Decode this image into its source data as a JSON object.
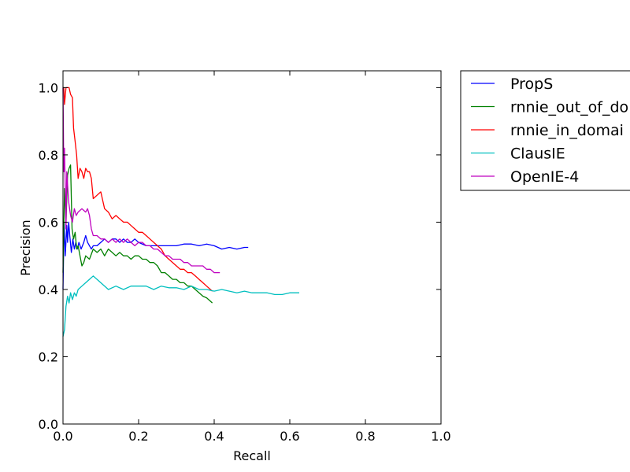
{
  "chart_data": {
    "type": "line",
    "xlabel": "Recall",
    "ylabel": "Precision",
    "xlim": [
      0.0,
      1.0
    ],
    "ylim": [
      0.0,
      1.05
    ],
    "xticks": [
      "0.0",
      "0.2",
      "0.4",
      "0.6",
      "0.8",
      "1.0"
    ],
    "yticks": [
      "0.0",
      "0.2",
      "0.4",
      "0.6",
      "0.8",
      "1.0"
    ],
    "grid": false,
    "legend_position": "outside-top-right",
    "series": [
      {
        "name": "PropS",
        "color": "#0000ff",
        "x": [
          0.0,
          0.003,
          0.006,
          0.01,
          0.012,
          0.015,
          0.018,
          0.022,
          0.026,
          0.03,
          0.034,
          0.038,
          0.042,
          0.048,
          0.055,
          0.06,
          0.065,
          0.07,
          0.075,
          0.08,
          0.09,
          0.1,
          0.11,
          0.12,
          0.13,
          0.14,
          0.15,
          0.16,
          0.17,
          0.18,
          0.19,
          0.2,
          0.22,
          0.24,
          0.26,
          0.28,
          0.3,
          0.32,
          0.34,
          0.36,
          0.38,
          0.4,
          0.42,
          0.44,
          0.46,
          0.48,
          0.49
        ],
        "y": [
          0.4,
          0.6,
          0.5,
          0.59,
          0.54,
          0.6,
          0.56,
          0.51,
          0.55,
          0.52,
          0.54,
          0.52,
          0.54,
          0.52,
          0.54,
          0.56,
          0.54,
          0.53,
          0.52,
          0.53,
          0.53,
          0.54,
          0.55,
          0.54,
          0.55,
          0.55,
          0.54,
          0.55,
          0.54,
          0.54,
          0.55,
          0.54,
          0.53,
          0.53,
          0.53,
          0.53,
          0.53,
          0.535,
          0.535,
          0.53,
          0.535,
          0.53,
          0.52,
          0.525,
          0.52,
          0.525,
          0.525
        ]
      },
      {
        "name": "rnnie_out_of_do",
        "color": "#008000",
        "x": [
          0.0,
          0.004,
          0.008,
          0.012,
          0.016,
          0.02,
          0.024,
          0.028,
          0.032,
          0.036,
          0.04,
          0.045,
          0.05,
          0.055,
          0.06,
          0.07,
          0.08,
          0.09,
          0.1,
          0.11,
          0.12,
          0.13,
          0.14,
          0.15,
          0.16,
          0.17,
          0.18,
          0.19,
          0.2,
          0.21,
          0.22,
          0.23,
          0.24,
          0.25,
          0.26,
          0.27,
          0.28,
          0.29,
          0.3,
          0.31,
          0.32,
          0.33,
          0.34,
          0.35,
          0.36,
          0.37,
          0.38,
          0.39,
          0.395
        ],
        "y": [
          0.45,
          0.7,
          0.6,
          0.74,
          0.76,
          0.77,
          0.58,
          0.55,
          0.57,
          0.52,
          0.53,
          0.5,
          0.47,
          0.48,
          0.5,
          0.49,
          0.52,
          0.51,
          0.52,
          0.5,
          0.52,
          0.51,
          0.5,
          0.51,
          0.5,
          0.5,
          0.49,
          0.5,
          0.5,
          0.49,
          0.49,
          0.48,
          0.48,
          0.47,
          0.45,
          0.45,
          0.44,
          0.43,
          0.43,
          0.42,
          0.42,
          0.41,
          0.41,
          0.4,
          0.39,
          0.38,
          0.375,
          0.365,
          0.36
        ]
      },
      {
        "name": "rnnie_in_domai",
        "color": "#ff0000",
        "x": [
          0.0,
          0.002,
          0.004,
          0.008,
          0.012,
          0.016,
          0.02,
          0.025,
          0.028,
          0.032,
          0.036,
          0.04,
          0.045,
          0.05,
          0.055,
          0.06,
          0.065,
          0.07,
          0.075,
          0.08,
          0.09,
          0.1,
          0.11,
          0.12,
          0.13,
          0.14,
          0.15,
          0.16,
          0.17,
          0.18,
          0.19,
          0.2,
          0.21,
          0.22,
          0.23,
          0.24,
          0.25,
          0.26,
          0.27,
          0.28,
          0.29,
          0.3,
          0.31,
          0.32,
          0.33,
          0.34,
          0.35,
          0.36,
          0.37,
          0.38,
          0.39,
          0.395
        ],
        "y": [
          1.0,
          1.0,
          0.95,
          1.0,
          1.0,
          1.0,
          0.98,
          0.97,
          0.88,
          0.84,
          0.8,
          0.73,
          0.76,
          0.75,
          0.73,
          0.76,
          0.75,
          0.75,
          0.73,
          0.67,
          0.68,
          0.69,
          0.64,
          0.63,
          0.61,
          0.62,
          0.61,
          0.6,
          0.6,
          0.59,
          0.58,
          0.57,
          0.57,
          0.56,
          0.55,
          0.54,
          0.53,
          0.52,
          0.5,
          0.49,
          0.48,
          0.47,
          0.46,
          0.46,
          0.45,
          0.45,
          0.44,
          0.43,
          0.42,
          0.41,
          0.4,
          0.395
        ]
      },
      {
        "name": "ClausIE",
        "color": "#00bfbf",
        "x": [
          0.0,
          0.004,
          0.008,
          0.012,
          0.016,
          0.02,
          0.025,
          0.03,
          0.035,
          0.04,
          0.05,
          0.06,
          0.07,
          0.08,
          0.09,
          0.1,
          0.12,
          0.14,
          0.16,
          0.18,
          0.2,
          0.22,
          0.24,
          0.26,
          0.28,
          0.3,
          0.32,
          0.34,
          0.36,
          0.38,
          0.4,
          0.42,
          0.44,
          0.46,
          0.48,
          0.5,
          0.52,
          0.54,
          0.56,
          0.58,
          0.6,
          0.62,
          0.625
        ],
        "y": [
          0.26,
          0.28,
          0.35,
          0.38,
          0.36,
          0.39,
          0.37,
          0.39,
          0.38,
          0.4,
          0.41,
          0.42,
          0.43,
          0.44,
          0.43,
          0.42,
          0.4,
          0.41,
          0.4,
          0.41,
          0.41,
          0.41,
          0.4,
          0.41,
          0.405,
          0.405,
          0.4,
          0.41,
          0.4,
          0.4,
          0.395,
          0.4,
          0.395,
          0.39,
          0.395,
          0.39,
          0.39,
          0.39,
          0.385,
          0.385,
          0.39,
          0.39,
          0.39
        ]
      },
      {
        "name": "OpenIE-4",
        "color": "#bf00bf",
        "x": [
          0.0,
          0.002,
          0.004,
          0.006,
          0.008,
          0.01,
          0.015,
          0.02,
          0.025,
          0.03,
          0.035,
          0.04,
          0.05,
          0.06,
          0.065,
          0.07,
          0.075,
          0.08,
          0.09,
          0.1,
          0.11,
          0.12,
          0.13,
          0.14,
          0.15,
          0.16,
          0.17,
          0.18,
          0.19,
          0.2,
          0.21,
          0.22,
          0.23,
          0.24,
          0.25,
          0.26,
          0.27,
          0.28,
          0.29,
          0.3,
          0.31,
          0.32,
          0.33,
          0.34,
          0.35,
          0.36,
          0.37,
          0.38,
          0.39,
          0.4,
          0.41,
          0.415
        ],
        "y": [
          1.0,
          0.75,
          0.82,
          0.7,
          0.58,
          0.75,
          0.66,
          0.62,
          0.6,
          0.64,
          0.62,
          0.63,
          0.64,
          0.63,
          0.64,
          0.62,
          0.58,
          0.56,
          0.56,
          0.55,
          0.55,
          0.54,
          0.55,
          0.54,
          0.55,
          0.54,
          0.55,
          0.54,
          0.53,
          0.54,
          0.54,
          0.53,
          0.53,
          0.52,
          0.52,
          0.51,
          0.5,
          0.5,
          0.49,
          0.49,
          0.49,
          0.48,
          0.48,
          0.47,
          0.47,
          0.47,
          0.47,
          0.46,
          0.46,
          0.45,
          0.45,
          0.45
        ]
      }
    ]
  }
}
